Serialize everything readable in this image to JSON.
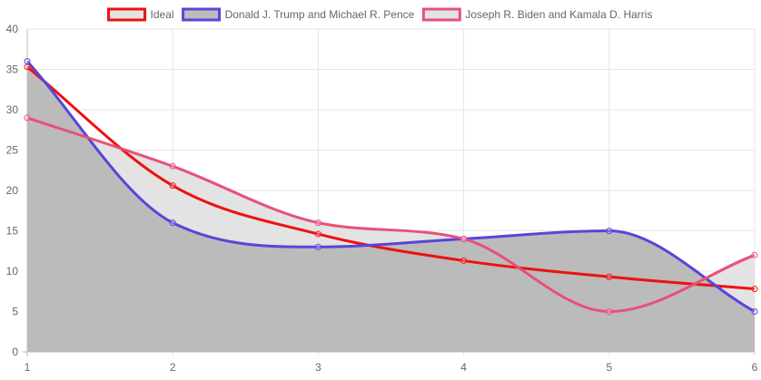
{
  "chart_data": {
    "type": "line",
    "x": [
      1,
      2,
      3,
      4,
      5,
      6
    ],
    "ylim": [
      0,
      40
    ],
    "y_ticks": [
      0,
      5,
      10,
      15,
      20,
      25,
      30,
      35,
      40
    ],
    "grid": true,
    "legend_position": "top-center",
    "series": [
      {
        "name": "Ideal",
        "values": [
          35.3,
          20.6,
          14.6,
          11.3,
          9.3,
          7.8
        ],
        "color": "#ee1111",
        "fill": "none"
      },
      {
        "name": "Donald J. Trump and Michael R. Pence",
        "values": [
          36,
          16,
          13,
          14,
          15,
          5
        ],
        "color": "#5b44d8",
        "fill": "#bbbbbb"
      },
      {
        "name": "Joseph R. Biden and Kamala D. Harris",
        "values": [
          29,
          23,
          16,
          14,
          5,
          12
        ],
        "color": "#e8507a",
        "fill": "#e3e3e3"
      }
    ]
  }
}
